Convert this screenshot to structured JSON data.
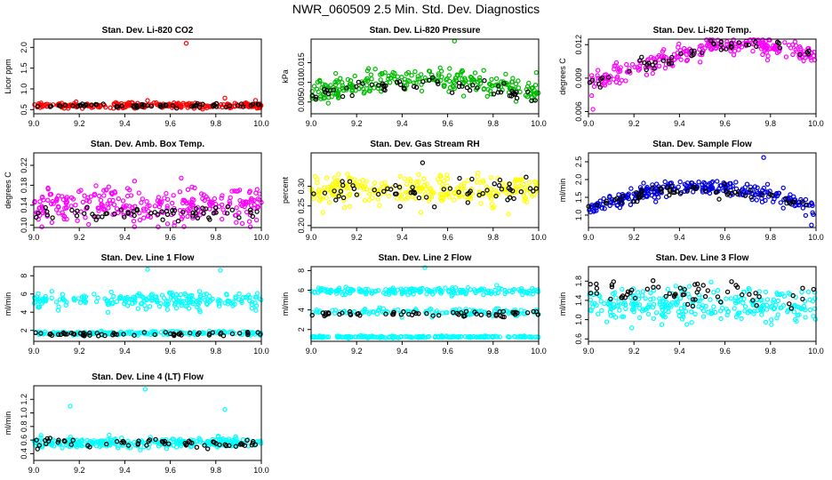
{
  "page": {
    "title": "NWR_060509  2.5 Min. Std. Dev. Diagnostics"
  },
  "chart_data": [
    {
      "type": "scatter",
      "title": "Stan. Dev. Li-820 CO2",
      "ylabel": "Licor ppm",
      "xlim": [
        9.0,
        10.0
      ],
      "ylim": [
        0.4,
        2.2
      ],
      "xticks": [
        {
          "v": 9.0,
          "label": "9.0"
        },
        {
          "v": 9.2,
          "label": "9.2"
        },
        {
          "v": 9.4,
          "label": "9.4"
        },
        {
          "v": 9.6,
          "label": "9.6"
        },
        {
          "v": 9.8,
          "label": "9.8"
        },
        {
          "v": 10.0,
          "label": "10.0"
        }
      ],
      "yticks": [
        {
          "v": 0.5,
          "label": "0.5"
        },
        {
          "v": 1.0,
          "label": "1.0"
        },
        {
          "v": 1.5,
          "label": "1.5"
        },
        {
          "v": 2.0,
          "label": "2.0"
        }
      ],
      "series": [
        {
          "name": "primary",
          "color": "#ff0000",
          "count": 240,
          "pattern": "flat",
          "base": 0.6,
          "amp": 0.0,
          "noise": 0.06,
          "outliers": [
            {
              "x": 9.67,
              "y": 2.1
            },
            {
              "x": 9.84,
              "y": 0.78
            },
            {
              "x": 9.5,
              "y": 0.72
            }
          ]
        },
        {
          "name": "secondary",
          "color": "#000000",
          "count": 60,
          "pattern": "flat",
          "base": 0.6,
          "amp": 0.0,
          "noise": 0.05,
          "outliers": []
        }
      ]
    },
    {
      "type": "scatter",
      "title": "Stan. Dev. Li-820 Pressure",
      "ylabel": "kPa",
      "xlim": [
        9.0,
        10.0
      ],
      "ylim": [
        0.002,
        0.021
      ],
      "xticks": [
        {
          "v": 9.0,
          "label": "9.0"
        },
        {
          "v": 9.2,
          "label": "9.2"
        },
        {
          "v": 9.4,
          "label": "9.4"
        },
        {
          "v": 9.6,
          "label": "9.6"
        },
        {
          "v": 9.8,
          "label": "9.8"
        },
        {
          "v": 10.0,
          "label": "10.0"
        }
      ],
      "yticks": [
        {
          "v": 0.005,
          "label": "0.005"
        },
        {
          "v": 0.01,
          "label": "0.010"
        },
        {
          "v": 0.015,
          "label": "0.015"
        }
      ],
      "series": [
        {
          "name": "primary",
          "color": "#00bb00",
          "count": 260,
          "pattern": "hump",
          "base": 0.0075,
          "amp": 0.0035,
          "noise": 0.0025,
          "outliers": [
            {
              "x": 9.63,
              "y": 0.0205
            },
            {
              "x": 9.99,
              "y": 0.0125
            }
          ]
        },
        {
          "name": "secondary",
          "color": "#000000",
          "count": 60,
          "pattern": "hump",
          "base": 0.0065,
          "amp": 0.003,
          "noise": 0.002,
          "outliers": []
        }
      ]
    },
    {
      "type": "scatter",
      "title": "Stan. Dev. Li-820 Temp.",
      "ylabel": "degrees C",
      "xlim": [
        9.0,
        10.0
      ],
      "ylim": [
        0.0058,
        0.0125
      ],
      "xticks": [
        {
          "v": 9.0,
          "label": "9.0"
        },
        {
          "v": 9.2,
          "label": "9.2"
        },
        {
          "v": 9.4,
          "label": "9.4"
        },
        {
          "v": 9.6,
          "label": "9.6"
        },
        {
          "v": 9.8,
          "label": "9.8"
        },
        {
          "v": 10.0,
          "label": "10.0"
        }
      ],
      "yticks": [
        {
          "v": 0.006,
          "label": "0.006"
        },
        {
          "v": 0.009,
          "label": "0.009"
        },
        {
          "v": 0.012,
          "label": "0.012"
        }
      ],
      "series": [
        {
          "name": "primary",
          "color": "#ff00ff",
          "count": 250,
          "pattern": "rise",
          "base": 0.0085,
          "amp": 0.0035,
          "noise": 0.0008,
          "outliers": [
            {
              "x": 9.02,
              "y": 0.0062
            }
          ]
        },
        {
          "name": "secondary",
          "color": "#000000",
          "count": 50,
          "pattern": "rise",
          "base": 0.0085,
          "amp": 0.0035,
          "noise": 0.0006,
          "outliers": []
        }
      ]
    },
    {
      "type": "scatter",
      "title": "Stan. Dev. Amb. Box Temp.",
      "ylabel": "degrees C",
      "xlim": [
        9.0,
        10.0
      ],
      "ylim": [
        0.095,
        0.245
      ],
      "xticks": [
        {
          "v": 9.0,
          "label": "9.0"
        },
        {
          "v": 9.2,
          "label": "9.2"
        },
        {
          "v": 9.4,
          "label": "9.4"
        },
        {
          "v": 9.6,
          "label": "9.6"
        },
        {
          "v": 9.8,
          "label": "9.8"
        },
        {
          "v": 10.0,
          "label": "10.0"
        }
      ],
      "yticks": [
        {
          "v": 0.1,
          "label": "0.10"
        },
        {
          "v": 0.14,
          "label": "0.14"
        },
        {
          "v": 0.18,
          "label": "0.18"
        },
        {
          "v": 0.22,
          "label": "0.22"
        }
      ],
      "series": [
        {
          "name": "primary",
          "color": "#ff00ff",
          "count": 280,
          "pattern": "flat",
          "base": 0.14,
          "amp": 0.0,
          "noise": 0.035,
          "outliers": []
        },
        {
          "name": "secondary",
          "color": "#000000",
          "count": 60,
          "pattern": "flat",
          "base": 0.125,
          "amp": 0.0,
          "noise": 0.012,
          "outliers": []
        }
      ]
    },
    {
      "type": "scatter",
      "title": "Stan. Dev. Gas Stream RH",
      "ylabel": "percent",
      "xlim": [
        9.0,
        10.0
      ],
      "ylim": [
        0.195,
        0.385
      ],
      "xticks": [
        {
          "v": 9.0,
          "label": "9.0"
        },
        {
          "v": 9.2,
          "label": "9.2"
        },
        {
          "v": 9.4,
          "label": "9.4"
        },
        {
          "v": 9.6,
          "label": "9.6"
        },
        {
          "v": 9.8,
          "label": "9.8"
        },
        {
          "v": 10.0,
          "label": "10.0"
        }
      ],
      "yticks": [
        {
          "v": 0.2,
          "label": "0.20"
        },
        {
          "v": 0.25,
          "label": "0.25"
        },
        {
          "v": 0.3,
          "label": "0.30"
        }
      ],
      "series": [
        {
          "name": "primary",
          "color": "#ffff00",
          "count": 280,
          "pattern": "flat",
          "base": 0.29,
          "amp": 0.0,
          "noise": 0.035,
          "outliers": []
        },
        {
          "name": "secondary",
          "color": "#000000",
          "count": 60,
          "pattern": "flat",
          "base": 0.29,
          "amp": 0.0,
          "noise": 0.03,
          "outliers": [
            {
              "x": 9.49,
              "y": 0.36
            }
          ]
        }
      ]
    },
    {
      "type": "scatter",
      "title": "Stan. Dev. Sample Flow",
      "ylabel": "ml/min",
      "xlim": [
        9.0,
        10.0
      ],
      "ylim": [
        0.65,
        2.75
      ],
      "xticks": [
        {
          "v": 9.0,
          "label": "9.0"
        },
        {
          "v": 9.2,
          "label": "9.2"
        },
        {
          "v": 9.4,
          "label": "9.4"
        },
        {
          "v": 9.6,
          "label": "9.6"
        },
        {
          "v": 9.8,
          "label": "9.8"
        },
        {
          "v": 10.0,
          "label": "10.0"
        }
      ],
      "yticks": [
        {
          "v": 1.0,
          "label": "1.0"
        },
        {
          "v": 1.5,
          "label": "1.5"
        },
        {
          "v": 2.0,
          "label": "2.0"
        },
        {
          "v": 2.5,
          "label": "2.5"
        }
      ],
      "series": [
        {
          "name": "primary",
          "color": "#0000dd",
          "count": 280,
          "pattern": "hump",
          "base": 1.2,
          "amp": 0.6,
          "noise": 0.2,
          "outliers": [
            {
              "x": 9.77,
              "y": 2.62
            },
            {
              "x": 9.98,
              "y": 0.72
            }
          ]
        },
        {
          "name": "secondary",
          "color": "#000000",
          "count": 60,
          "pattern": "hump",
          "base": 1.2,
          "amp": 0.5,
          "noise": 0.15,
          "outliers": []
        }
      ]
    },
    {
      "type": "scatter",
      "title": "Stan. Dev. Line 1 Flow",
      "ylabel": "ml/min",
      "xlim": [
        9.0,
        10.0
      ],
      "ylim": [
        0.8,
        9.0
      ],
      "xticks": [
        {
          "v": 9.0,
          "label": "9.0"
        },
        {
          "v": 9.2,
          "label": "9.2"
        },
        {
          "v": 9.4,
          "label": "9.4"
        },
        {
          "v": 9.6,
          "label": "9.6"
        },
        {
          "v": 9.8,
          "label": "9.8"
        },
        {
          "v": 10.0,
          "label": "10.0"
        }
      ],
      "yticks": [
        {
          "v": 2,
          "label": "2"
        },
        {
          "v": 4,
          "label": "4"
        },
        {
          "v": 6,
          "label": "6"
        },
        {
          "v": 8,
          "label": "8"
        }
      ],
      "series": [
        {
          "name": "upper",
          "color": "#00ffff",
          "count": 220,
          "pattern": "flat",
          "base": 5.3,
          "amp": 0.0,
          "noise": 0.8,
          "outliers": [
            {
              "x": 9.5,
              "y": 8.7
            },
            {
              "x": 9.82,
              "y": 8.6
            }
          ]
        },
        {
          "name": "lower",
          "color": "#00ffff",
          "count": 200,
          "pattern": "flat",
          "base": 1.7,
          "amp": 0.0,
          "noise": 0.2,
          "outliers": []
        },
        {
          "name": "secondary",
          "color": "#000000",
          "count": 60,
          "pattern": "flat",
          "base": 1.6,
          "amp": 0.0,
          "noise": 0.18,
          "outliers": []
        }
      ]
    },
    {
      "type": "scatter",
      "title": "Stan. Dev. Line 2 Flow",
      "ylabel": "ml/min",
      "xlim": [
        9.0,
        10.0
      ],
      "ylim": [
        0.8,
        8.4
      ],
      "xticks": [
        {
          "v": 9.0,
          "label": "9.0"
        },
        {
          "v": 9.2,
          "label": "9.2"
        },
        {
          "v": 9.4,
          "label": "9.4"
        },
        {
          "v": 9.6,
          "label": "9.6"
        },
        {
          "v": 9.8,
          "label": "9.8"
        },
        {
          "v": 10.0,
          "label": "10.0"
        }
      ],
      "yticks": [
        {
          "v": 2,
          "label": "2"
        },
        {
          "v": 4,
          "label": "4"
        },
        {
          "v": 6,
          "label": "6"
        },
        {
          "v": 8,
          "label": "8"
        }
      ],
      "series": [
        {
          "name": "upper",
          "color": "#00ffff",
          "count": 200,
          "pattern": "flat",
          "base": 5.9,
          "amp": 0.0,
          "noise": 0.35,
          "outliers": [
            {
              "x": 9.5,
              "y": 8.3
            }
          ]
        },
        {
          "name": "middle",
          "color": "#00ffff",
          "count": 120,
          "pattern": "flat",
          "base": 3.8,
          "amp": 0.0,
          "noise": 0.35,
          "outliers": []
        },
        {
          "name": "lower",
          "color": "#00ffff",
          "count": 200,
          "pattern": "flat",
          "base": 1.25,
          "amp": 0.0,
          "noise": 0.08,
          "outliers": []
        },
        {
          "name": "secondary",
          "color": "#000000",
          "count": 60,
          "pattern": "flat",
          "base": 3.6,
          "amp": 0.0,
          "noise": 0.25,
          "outliers": []
        }
      ]
    },
    {
      "type": "scatter",
      "title": "Stan. Dev. Line 3 Flow",
      "ylabel": "ml/min",
      "xlim": [
        9.0,
        10.0
      ],
      "ylim": [
        0.55,
        2.1
      ],
      "xticks": [
        {
          "v": 9.0,
          "label": "9.0"
        },
        {
          "v": 9.2,
          "label": "9.2"
        },
        {
          "v": 9.4,
          "label": "9.4"
        },
        {
          "v": 9.6,
          "label": "9.6"
        },
        {
          "v": 9.8,
          "label": "9.8"
        },
        {
          "v": 10.0,
          "label": "10.0"
        }
      ],
      "yticks": [
        {
          "v": 0.6,
          "label": "0.6"
        },
        {
          "v": 1.0,
          "label": "1.0"
        },
        {
          "v": 1.4,
          "label": "1.4"
        },
        {
          "v": 1.8,
          "label": "1.8"
        }
      ],
      "series": [
        {
          "name": "primary",
          "color": "#00ffff",
          "count": 280,
          "pattern": "flat",
          "base": 1.3,
          "amp": 0.0,
          "noise": 0.3,
          "outliers": []
        },
        {
          "name": "secondary",
          "color": "#000000",
          "count": 60,
          "pattern": "flat",
          "base": 1.55,
          "amp": 0.0,
          "noise": 0.25,
          "outliers": []
        }
      ]
    },
    {
      "type": "scatter",
      "title": "Stan. Dev. Line 4 (LT) Flow",
      "ylabel": "ml/min",
      "xlim": [
        9.0,
        10.0
      ],
      "ylim": [
        0.3,
        1.4
      ],
      "xticks": [
        {
          "v": 9.0,
          "label": "9.0"
        },
        {
          "v": 9.2,
          "label": "9.2"
        },
        {
          "v": 9.4,
          "label": "9.4"
        },
        {
          "v": 9.6,
          "label": "9.6"
        },
        {
          "v": 9.8,
          "label": "9.8"
        },
        {
          "v": 10.0,
          "label": "10.0"
        }
      ],
      "yticks": [
        {
          "v": 0.4,
          "label": "0.4"
        },
        {
          "v": 0.6,
          "label": "0.6"
        },
        {
          "v": 0.8,
          "label": "0.8"
        },
        {
          "v": 1.0,
          "label": "1.0"
        },
        {
          "v": 1.2,
          "label": "1.2"
        }
      ],
      "series": [
        {
          "name": "primary",
          "color": "#00ffff",
          "count": 280,
          "pattern": "flat",
          "base": 0.56,
          "amp": 0.0,
          "noise": 0.07,
          "outliers": [
            {
              "x": 9.16,
              "y": 1.1
            },
            {
              "x": 9.49,
              "y": 1.35
            },
            {
              "x": 9.84,
              "y": 1.05
            }
          ]
        },
        {
          "name": "secondary",
          "color": "#000000",
          "count": 60,
          "pattern": "flat",
          "base": 0.55,
          "amp": 0.0,
          "noise": 0.07,
          "outliers": []
        }
      ]
    }
  ]
}
